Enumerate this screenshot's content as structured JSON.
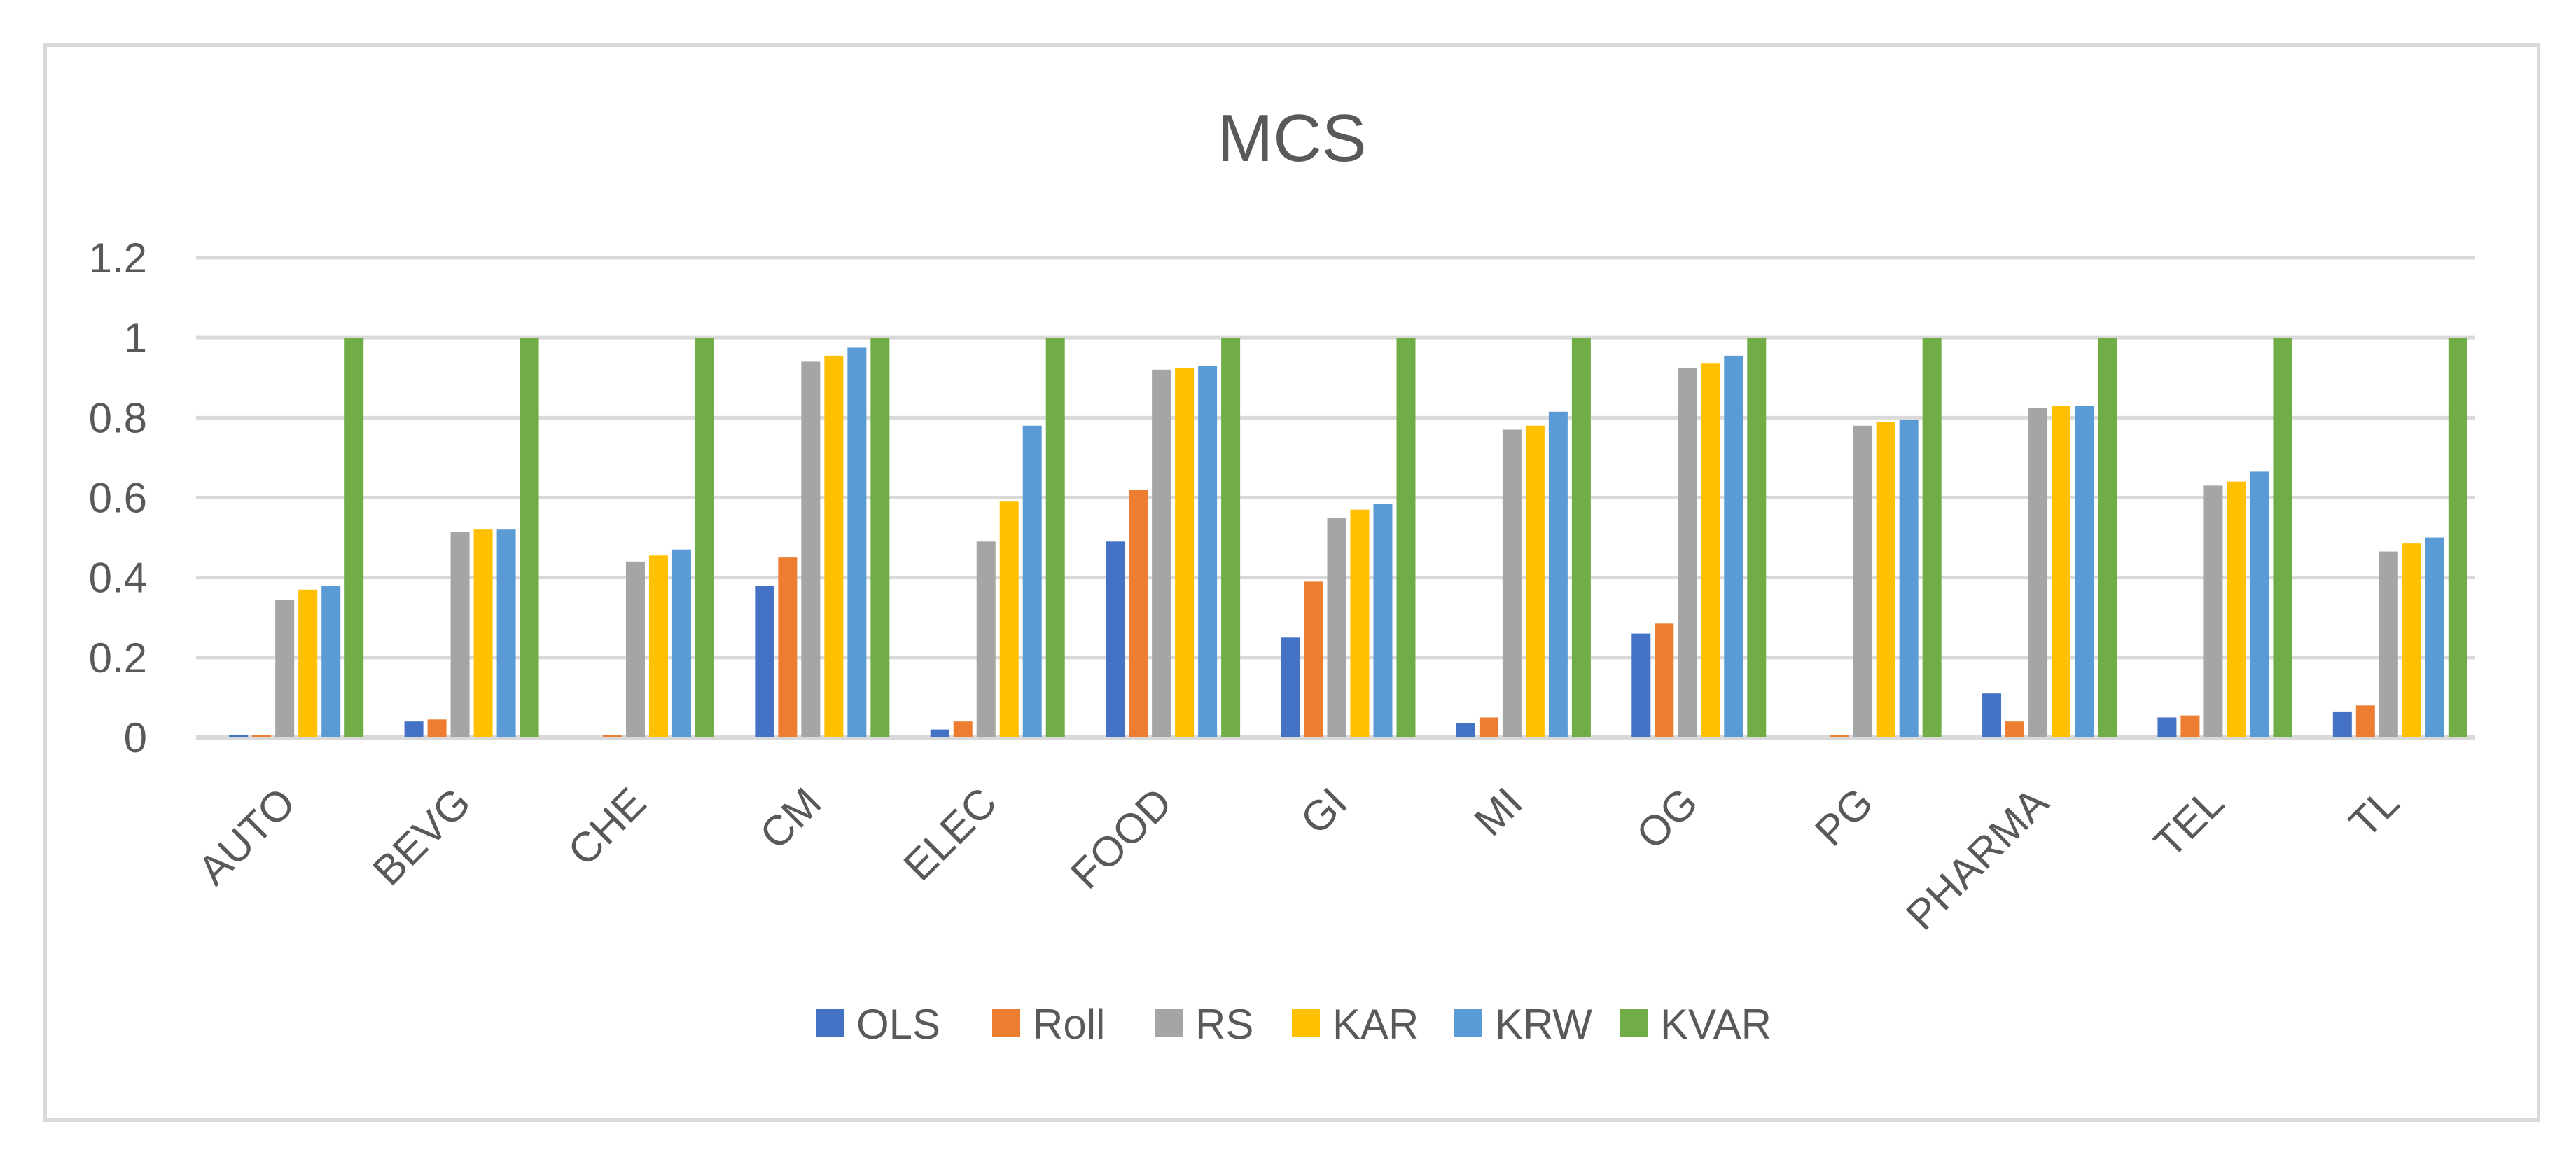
{
  "chart_data": {
    "type": "bar",
    "title": "MCS",
    "xlabel": "",
    "ylabel": "",
    "ylim": [
      0,
      1.2
    ],
    "yticks": [
      "0",
      "0.2",
      "0.4",
      "0.6",
      "0.8",
      "1",
      "1.2"
    ],
    "grid": true,
    "legend_position": "bottom",
    "categories": [
      "AUTO",
      "BEVG",
      "CHE",
      "CM",
      "ELEC",
      "FOOD",
      "GI",
      "MI",
      "OG",
      "PG",
      "PHARMA",
      "TEL",
      "TL"
    ],
    "series": [
      {
        "name": "OLS",
        "color": "#4472c4",
        "values": [
          0.005,
          0.04,
          0.0,
          0.38,
          0.02,
          0.49,
          0.25,
          0.035,
          0.26,
          0.0,
          0.11,
          0.05,
          0.065
        ]
      },
      {
        "name": "Roll",
        "color": "#ed7d31",
        "values": [
          0.005,
          0.045,
          0.005,
          0.45,
          0.04,
          0.62,
          0.39,
          0.05,
          0.285,
          0.005,
          0.04,
          0.055,
          0.08
        ]
      },
      {
        "name": "RS",
        "color": "#a5a5a5",
        "values": [
          0.345,
          0.515,
          0.44,
          0.94,
          0.49,
          0.92,
          0.55,
          0.77,
          0.925,
          0.78,
          0.825,
          0.63,
          0.465
        ]
      },
      {
        "name": "KAR",
        "color": "#ffc000",
        "values": [
          0.37,
          0.52,
          0.455,
          0.955,
          0.59,
          0.925,
          0.57,
          0.78,
          0.935,
          0.79,
          0.83,
          0.64,
          0.485
        ]
      },
      {
        "name": "KRW",
        "color": "#5b9bd5",
        "values": [
          0.38,
          0.52,
          0.47,
          0.975,
          0.78,
          0.93,
          0.585,
          0.815,
          0.955,
          0.795,
          0.83,
          0.665,
          0.5
        ]
      },
      {
        "name": "KVAR",
        "color": "#70ad47",
        "values": [
          1,
          1,
          1,
          1,
          1,
          1,
          1,
          1,
          1,
          1,
          1,
          1,
          1
        ]
      }
    ]
  },
  "colors": {
    "grid": "#d9d9d9",
    "text": "#595959",
    "border": "#d9d9d9"
  }
}
